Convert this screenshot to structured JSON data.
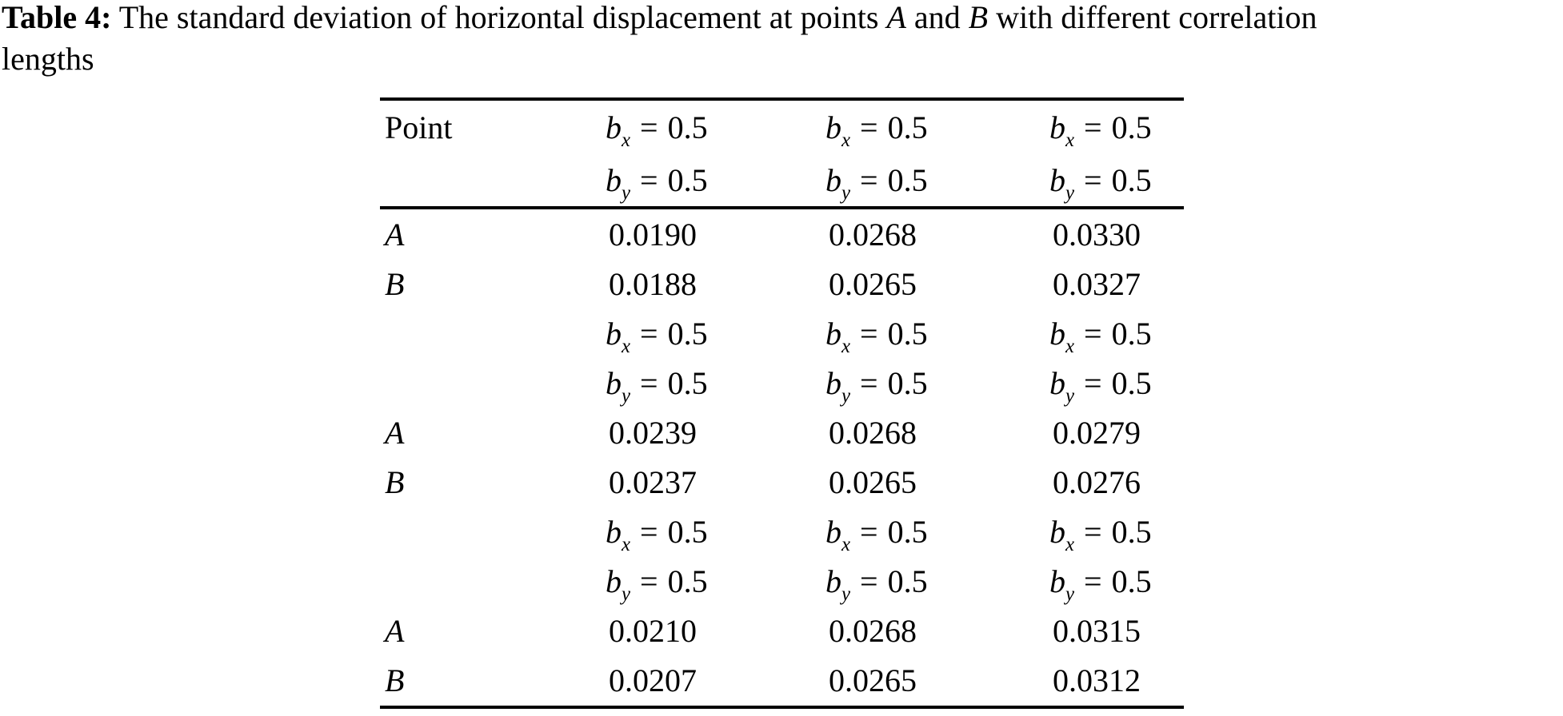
{
  "colors": {
    "text": "#000000",
    "background": "#ffffff"
  },
  "caption": {
    "label": "Table 4:",
    "before_a": " The standard deviation of horizontal displacement at points ",
    "point_a": "A",
    "and_text": " and ",
    "point_b": "B",
    "after_b": " with different correlation",
    "line2": "lengths"
  },
  "table": {
    "corner_header": "Point",
    "math": {
      "b": "b",
      "x": "x",
      "y": "y",
      "eq": "="
    },
    "groups": [
      {
        "bx": [
          "0.5",
          "0.5",
          "0.5"
        ],
        "by": [
          "0.5",
          "0.5",
          "0.5"
        ],
        "rows": [
          {
            "point": "A",
            "values": [
              "0.0190",
              "0.0268",
              "0.0330"
            ]
          },
          {
            "point": "B",
            "values": [
              "0.0188",
              "0.0265",
              "0.0327"
            ]
          }
        ]
      },
      {
        "bx": [
          "0.5",
          "0.5",
          "0.5"
        ],
        "by": [
          "0.5",
          "0.5",
          "0.5"
        ],
        "rows": [
          {
            "point": "A",
            "values": [
              "0.0239",
              "0.0268",
              "0.0279"
            ]
          },
          {
            "point": "B",
            "values": [
              "0.0237",
              "0.0265",
              "0.0276"
            ]
          }
        ]
      },
      {
        "bx": [
          "0.5",
          "0.5",
          "0.5"
        ],
        "by": [
          "0.5",
          "0.5",
          "0.5"
        ],
        "rows": [
          {
            "point": "A",
            "values": [
              "0.0210",
              "0.0268",
              "0.0315"
            ]
          },
          {
            "point": "B",
            "values": [
              "0.0207",
              "0.0265",
              "0.0312"
            ]
          }
        ]
      }
    ]
  }
}
